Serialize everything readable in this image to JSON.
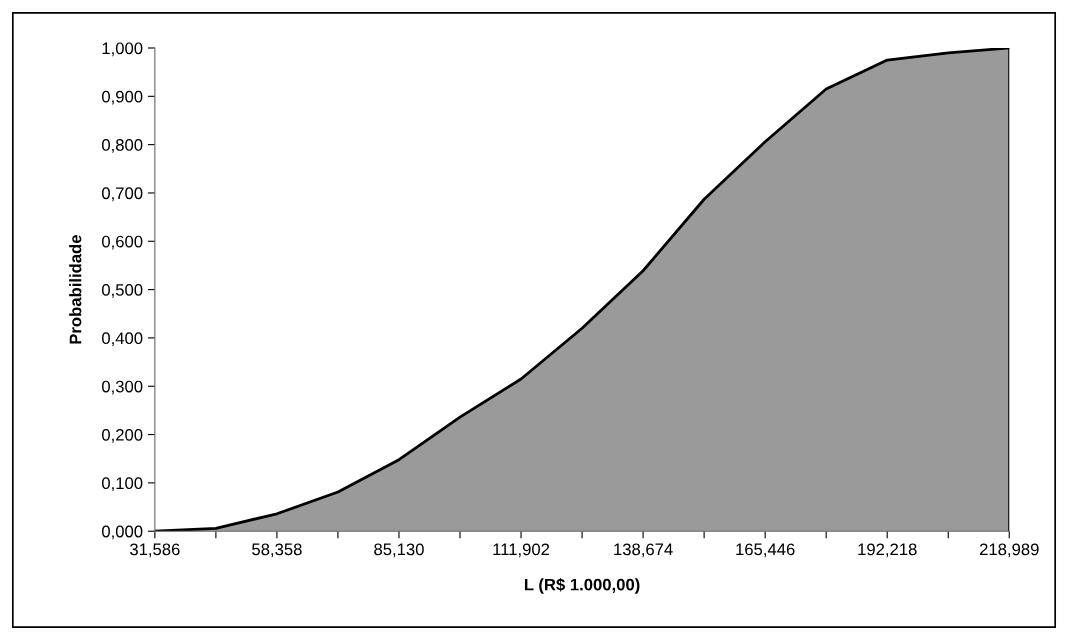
{
  "chart_data": {
    "type": "area",
    "xlabel": "L (R$ 1.000,00)",
    "ylabel": "Probabilidade",
    "categories": [
      "31,586",
      null,
      "58,358",
      null,
      "85,130",
      null,
      "111,902",
      null,
      "138,674",
      null,
      "165,446",
      null,
      "192,218",
      null,
      "218,989"
    ],
    "series": [
      {
        "color": "#9a9a9a",
        "values": [
          0.0,
          0.006,
          0.036,
          0.081,
          0.148,
          0.236,
          0.315,
          0.42,
          0.539,
          0.687,
          0.806,
          0.915,
          0.975,
          0.99,
          1.0
        ]
      }
    ],
    "ylim": [
      0,
      1
    ],
    "yticks": [
      {
        "value": 0,
        "label": "0,000"
      },
      {
        "value": 0.1,
        "label": "0,100"
      },
      {
        "value": 0.2,
        "label": "0,200"
      },
      {
        "value": 0.3,
        "label": "0,300"
      },
      {
        "value": 0.4,
        "label": "0,400"
      },
      {
        "value": 0.5,
        "label": "0,500"
      },
      {
        "value": 0.6,
        "label": "0,600"
      },
      {
        "value": 0.7,
        "label": "0,700"
      },
      {
        "value": 0.8,
        "label": "0,800"
      },
      {
        "value": 0.9,
        "label": "0,900"
      },
      {
        "value": 1,
        "label": "1,000"
      }
    ],
    "grid": false,
    "legend": false
  }
}
